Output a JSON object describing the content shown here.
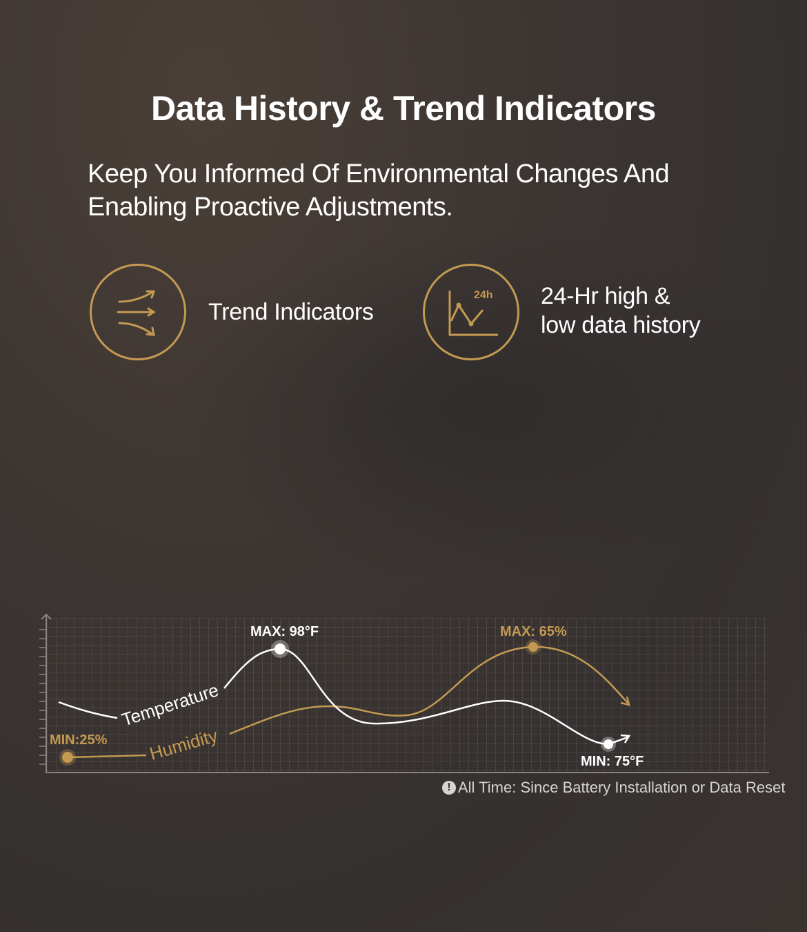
{
  "header": {
    "title": "Data History & Trend Indicators",
    "subtitle": "Keep You Informed Of Environmental Changes And Enabling Proactive Adjustments."
  },
  "features": [
    {
      "icon": "trend-arrows-icon",
      "label": "Trend Indicators"
    },
    {
      "icon": "24h-chart-icon",
      "icon_text": "24h",
      "label_line1": "24-Hr high &",
      "label_line2": "low data history"
    }
  ],
  "chart": {
    "temperature_label": "Temperature",
    "humidity_label": "Humidity",
    "temp_max": "MAX: 98°F",
    "temp_min": "MIN: 75°F",
    "hum_max": "MAX: 65%",
    "hum_min": "MIN:25%",
    "note": "All Time: Since Battery Installation or Data Reset",
    "note_icon": "!"
  },
  "colors": {
    "accent": "#c49a52",
    "background": "#3a3432",
    "line": "#ffffff"
  }
}
